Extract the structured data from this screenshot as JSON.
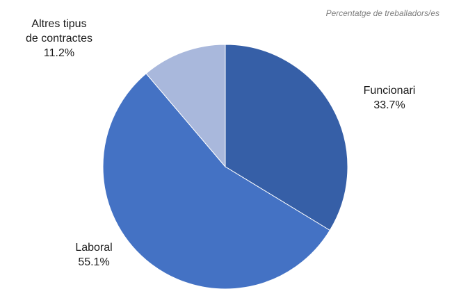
{
  "note": "Percentatge de treballadors/es",
  "chart_data": {
    "type": "pie",
    "unit": "%",
    "slices": [
      {
        "name_lines": [
          "Funcionari"
        ],
        "value": 33.7,
        "value_text": "33.7%",
        "color": "#365fa7"
      },
      {
        "name_lines": [
          "Laboral"
        ],
        "value": 55.1,
        "value_text": "55.1%",
        "color": "#4472c4"
      },
      {
        "name_lines": [
          "Altres tipus",
          "de contractes"
        ],
        "value": 11.2,
        "value_text": "11.2%",
        "color": "#a9b8dc"
      }
    ],
    "start": "12 o'clock",
    "direction": "clockwise",
    "legend": "none"
  }
}
